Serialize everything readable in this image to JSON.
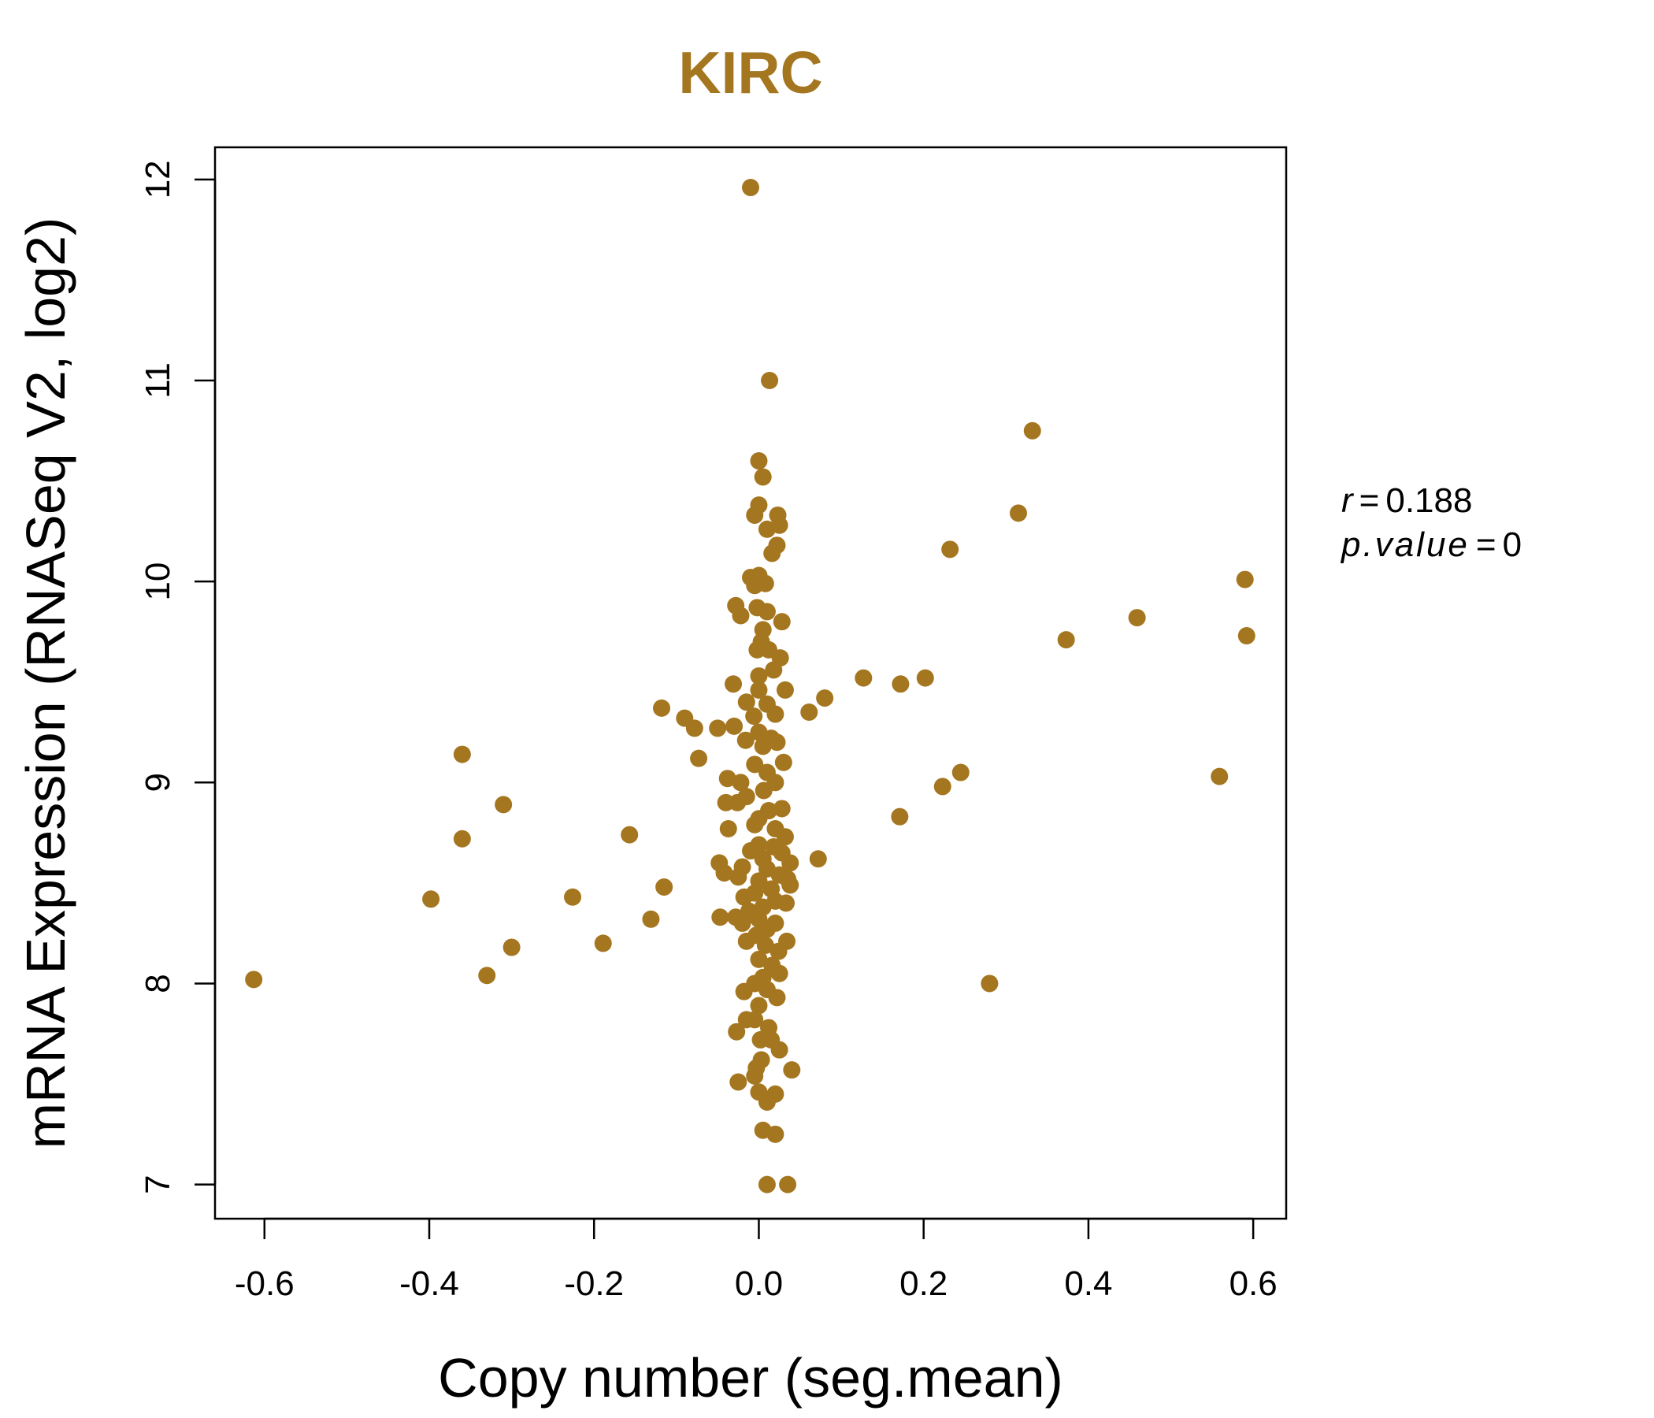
{
  "chart_data": {
    "type": "scatter",
    "title": "KIRC",
    "xlabel": "Copy number (seg.mean)",
    "ylabel": "mRNA Expression (RNASeq V2, log2)",
    "xlim": [
      -0.66,
      0.64
    ],
    "ylim": [
      6.83,
      12.16
    ],
    "xticks": [
      -0.6,
      -0.4,
      -0.2,
      0.0,
      0.2,
      0.4,
      0.6
    ],
    "xtick_labels": [
      "-0.6",
      "-0.4",
      "-0.2",
      "0.0",
      "0.2",
      "0.4",
      "0.6"
    ],
    "yticks": [
      7,
      8,
      9,
      10,
      11,
      12
    ],
    "ytick_labels": [
      "7",
      "8",
      "9",
      "10",
      "11",
      "12"
    ],
    "grid": false,
    "point_color": "#A57620",
    "stats": {
      "r_label": "r",
      "r_value": "0.188",
      "p_label": "p.value",
      "p_value": "0"
    },
    "series": [
      {
        "points": [
          [
            -0.01,
            11.96
          ],
          [
            0.013,
            11.0
          ],
          [
            0.332,
            10.75
          ],
          [
            0.0,
            10.6
          ],
          [
            0.005,
            10.52
          ],
          [
            0.0,
            10.38
          ],
          [
            -0.005,
            10.33
          ],
          [
            0.023,
            10.33
          ],
          [
            0.315,
            10.34
          ],
          [
            0.025,
            10.28
          ],
          [
            0.01,
            10.26
          ],
          [
            0.022,
            10.18
          ],
          [
            0.232,
            10.16
          ],
          [
            0.016,
            10.14
          ],
          [
            -0.01,
            10.02
          ],
          [
            0.0,
            10.03
          ],
          [
            -0.005,
            9.98
          ],
          [
            0.008,
            9.99
          ],
          [
            0.59,
            10.01
          ],
          [
            -0.028,
            9.88
          ],
          [
            -0.022,
            9.83
          ],
          [
            -0.002,
            9.87
          ],
          [
            0.01,
            9.85
          ],
          [
            0.028,
            9.8
          ],
          [
            0.459,
            9.82
          ],
          [
            0.005,
            9.76
          ],
          [
            0.003,
            9.7
          ],
          [
            0.373,
            9.71
          ],
          [
            0.592,
            9.73
          ],
          [
            0.012,
            9.66
          ],
          [
            -0.002,
            9.66
          ],
          [
            0.026,
            9.62
          ],
          [
            0.018,
            9.56
          ],
          [
            0.0,
            9.53
          ],
          [
            0.127,
            9.52
          ],
          [
            0.202,
            9.52
          ],
          [
            0.172,
            9.49
          ],
          [
            -0.031,
            9.49
          ],
          [
            0.0,
            9.46
          ],
          [
            0.032,
            9.46
          ],
          [
            0.08,
            9.42
          ],
          [
            -0.015,
            9.4
          ],
          [
            0.01,
            9.39
          ],
          [
            -0.118,
            9.37
          ],
          [
            0.061,
            9.35
          ],
          [
            -0.09,
            9.32
          ],
          [
            -0.006,
            9.33
          ],
          [
            0.02,
            9.34
          ],
          [
            -0.078,
            9.27
          ],
          [
            -0.05,
            9.27
          ],
          [
            -0.03,
            9.28
          ],
          [
            0.0,
            9.25
          ],
          [
            0.015,
            9.22
          ],
          [
            -0.016,
            9.21
          ],
          [
            0.022,
            9.2
          ],
          [
            0.005,
            9.18
          ],
          [
            -0.36,
            9.14
          ],
          [
            -0.073,
            9.12
          ],
          [
            0.03,
            9.1
          ],
          [
            -0.005,
            9.09
          ],
          [
            0.245,
            9.05
          ],
          [
            0.01,
            9.05
          ],
          [
            0.559,
            9.03
          ],
          [
            -0.038,
            9.02
          ],
          [
            -0.022,
            9.0
          ],
          [
            0.02,
            9.0
          ],
          [
            0.223,
            8.98
          ],
          [
            0.006,
            8.96
          ],
          [
            -0.015,
            8.93
          ],
          [
            -0.31,
            8.89
          ],
          [
            -0.04,
            8.9
          ],
          [
            -0.026,
            8.9
          ],
          [
            0.028,
            8.87
          ],
          [
            0.012,
            8.86
          ],
          [
            0.0,
            8.82
          ],
          [
            0.171,
            8.83
          ],
          [
            -0.005,
            8.79
          ],
          [
            -0.037,
            8.77
          ],
          [
            0.02,
            8.77
          ],
          [
            -0.157,
            8.74
          ],
          [
            -0.36,
            8.72
          ],
          [
            0.032,
            8.73
          ],
          [
            0.0,
            8.69
          ],
          [
            0.018,
            8.68
          ],
          [
            -0.01,
            8.66
          ],
          [
            0.028,
            8.65
          ],
          [
            0.072,
            8.62
          ],
          [
            0.005,
            8.62
          ],
          [
            -0.048,
            8.6
          ],
          [
            0.038,
            8.6
          ],
          [
            -0.02,
            8.58
          ],
          [
            0.01,
            8.57
          ],
          [
            -0.042,
            8.55
          ],
          [
            0.025,
            8.54
          ],
          [
            -0.025,
            8.53
          ],
          [
            0.035,
            8.52
          ],
          [
            0.0,
            8.51
          ],
          [
            0.038,
            8.49
          ],
          [
            -0.115,
            8.48
          ],
          [
            0.015,
            8.47
          ],
          [
            -0.005,
            8.45
          ],
          [
            -0.226,
            8.43
          ],
          [
            -0.398,
            8.42
          ],
          [
            -0.018,
            8.43
          ],
          [
            0.02,
            8.41
          ],
          [
            0.033,
            8.4
          ],
          [
            0.005,
            8.38
          ],
          [
            -0.012,
            8.36
          ],
          [
            -0.028,
            8.33
          ],
          [
            -0.047,
            8.33
          ],
          [
            -0.131,
            8.32
          ],
          [
            0.0,
            8.32
          ],
          [
            -0.02,
            8.3
          ],
          [
            0.02,
            8.3
          ],
          [
            0.01,
            8.27
          ],
          [
            -0.003,
            8.24
          ],
          [
            0.034,
            8.21
          ],
          [
            -0.015,
            8.21
          ],
          [
            -0.189,
            8.2
          ],
          [
            0.008,
            8.19
          ],
          [
            -0.3,
            8.18
          ],
          [
            0.024,
            8.16
          ],
          [
            0.0,
            8.12
          ],
          [
            0.016,
            8.09
          ],
          [
            -0.33,
            8.04
          ],
          [
            0.025,
            8.05
          ],
          [
            0.005,
            8.03
          ],
          [
            -0.005,
            8.0
          ],
          [
            -0.613,
            8.02
          ],
          [
            0.28,
            8.0
          ],
          [
            0.01,
            7.97
          ],
          [
            -0.018,
            7.96
          ],
          [
            0.022,
            7.93
          ],
          [
            0.0,
            7.89
          ],
          [
            -0.015,
            7.82
          ],
          [
            -0.005,
            7.82
          ],
          [
            0.012,
            7.78
          ],
          [
            -0.027,
            7.76
          ],
          [
            0.002,
            7.72
          ],
          [
            0.015,
            7.72
          ],
          [
            0.025,
            7.67
          ],
          [
            0.003,
            7.62
          ],
          [
            -0.003,
            7.58
          ],
          [
            0.04,
            7.57
          ],
          [
            -0.005,
            7.54
          ],
          [
            -0.025,
            7.51
          ],
          [
            0.0,
            7.46
          ],
          [
            0.02,
            7.45
          ],
          [
            0.01,
            7.41
          ],
          [
            0.005,
            7.27
          ],
          [
            0.02,
            7.25
          ],
          [
            0.01,
            7.0
          ],
          [
            0.035,
            7.0
          ]
        ]
      }
    ]
  }
}
